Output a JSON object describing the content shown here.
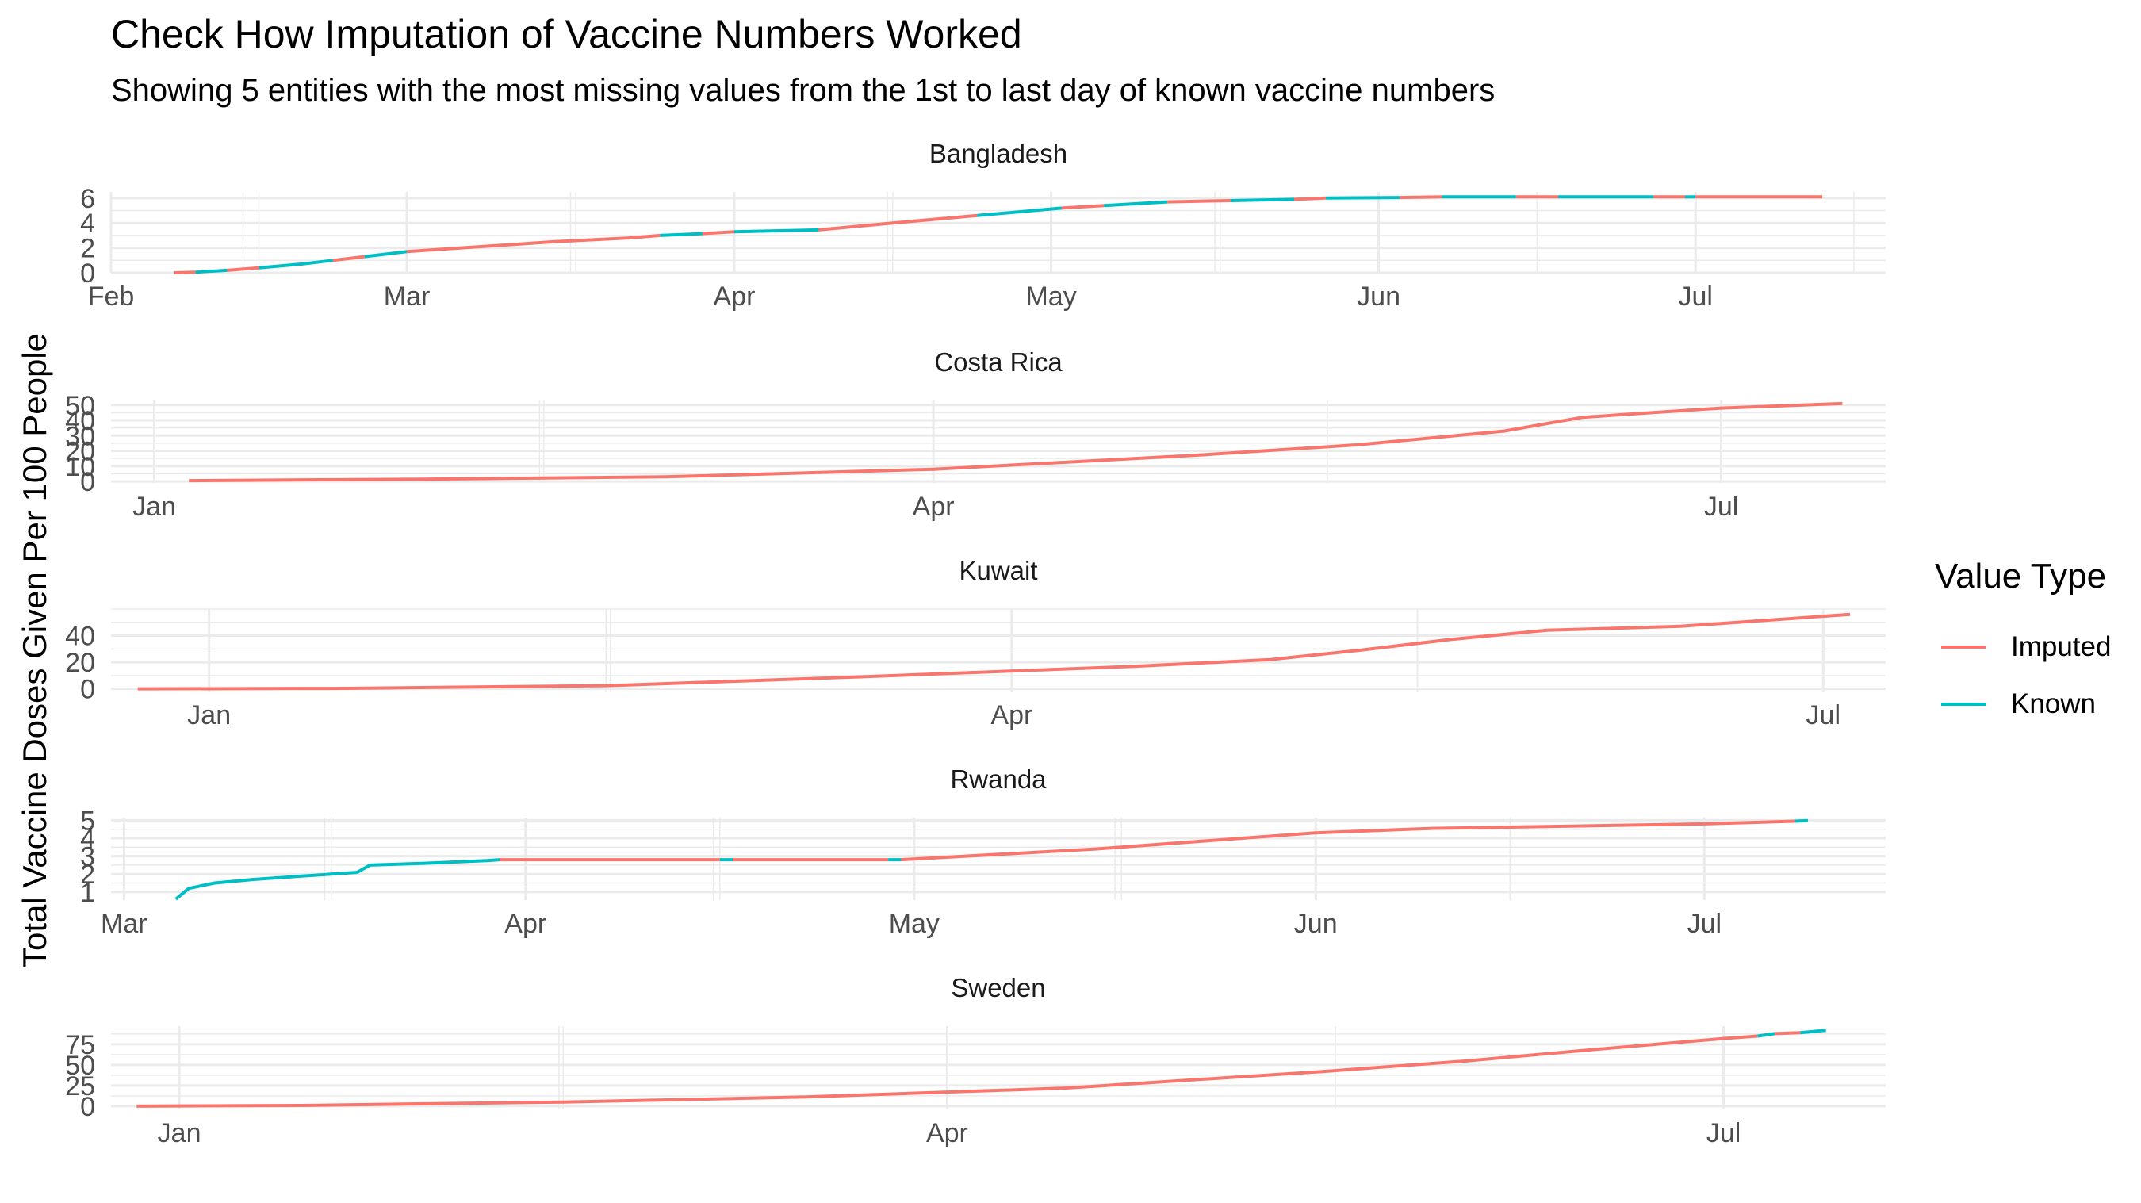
{
  "title": "Check How Imputation of Vaccine Numbers Worked",
  "subtitle": "Showing 5 entities with the most missing values from the 1st to last day of known vaccine numbers",
  "ylabel": "Total Vaccine Doses Given Per 100 People",
  "legend": {
    "title": "Value Type",
    "items": [
      {
        "label": "Imputed",
        "color": "#F8766D"
      },
      {
        "label": "Known",
        "color": "#00BFC4"
      }
    ]
  },
  "chart_data": [
    {
      "type": "line",
      "title": "Bangladesh",
      "x_type": "date",
      "xlim": [
        "2021-02-01",
        "2021-07-19"
      ],
      "ylim": [
        0,
        6.5
      ],
      "x_ticks": [
        {
          "date": "2021-02-01",
          "label": "Feb"
        },
        {
          "date": "2021-03-01",
          "label": "Mar"
        },
        {
          "date": "2021-04-01",
          "label": "Apr"
        },
        {
          "date": "2021-05-01",
          "label": "May"
        },
        {
          "date": "2021-06-01",
          "label": "Jun"
        },
        {
          "date": "2021-07-01",
          "label": "Jul"
        }
      ],
      "y_ticks": [
        0,
        2,
        4,
        6
      ],
      "segments": [
        {
          "type": "Imputed",
          "points": [
            [
              "2021-02-07",
              0
            ],
            [
              "2021-02-09",
              0.05
            ]
          ]
        },
        {
          "type": "Known",
          "points": [
            [
              "2021-02-09",
              0.05
            ],
            [
              "2021-02-12",
              0.2
            ]
          ]
        },
        {
          "type": "Imputed",
          "points": [
            [
              "2021-02-12",
              0.2
            ],
            [
              "2021-02-15",
              0.4
            ]
          ]
        },
        {
          "type": "Known",
          "points": [
            [
              "2021-02-15",
              0.4
            ],
            [
              "2021-02-19",
              0.7
            ],
            [
              "2021-02-22",
              1.0
            ]
          ]
        },
        {
          "type": "Imputed",
          "points": [
            [
              "2021-02-22",
              1.0
            ],
            [
              "2021-02-25",
              1.3
            ]
          ]
        },
        {
          "type": "Known",
          "points": [
            [
              "2021-02-25",
              1.3
            ],
            [
              "2021-03-01",
              1.7
            ]
          ]
        },
        {
          "type": "Imputed",
          "points": [
            [
              "2021-03-01",
              1.7
            ],
            [
              "2021-03-08",
              2.1
            ],
            [
              "2021-03-15",
              2.5
            ],
            [
              "2021-03-22",
              2.8
            ],
            [
              "2021-03-25",
              3.0
            ]
          ]
        },
        {
          "type": "Known",
          "points": [
            [
              "2021-03-25",
              3.0
            ],
            [
              "2021-03-29",
              3.15
            ]
          ]
        },
        {
          "type": "Imputed",
          "points": [
            [
              "2021-03-29",
              3.15
            ],
            [
              "2021-04-01",
              3.3
            ]
          ]
        },
        {
          "type": "Known",
          "points": [
            [
              "2021-04-01",
              3.3
            ],
            [
              "2021-04-09",
              3.45
            ]
          ]
        },
        {
          "type": "Imputed",
          "points": [
            [
              "2021-04-09",
              3.45
            ],
            [
              "2021-04-16",
              4.0
            ],
            [
              "2021-04-24",
              4.6
            ]
          ]
        },
        {
          "type": "Known",
          "points": [
            [
              "2021-04-24",
              4.6
            ],
            [
              "2021-05-02",
              5.2
            ]
          ]
        },
        {
          "type": "Imputed",
          "points": [
            [
              "2021-05-02",
              5.2
            ],
            [
              "2021-05-06",
              5.4
            ]
          ]
        },
        {
          "type": "Known",
          "points": [
            [
              "2021-05-06",
              5.4
            ],
            [
              "2021-05-12",
              5.7
            ]
          ]
        },
        {
          "type": "Imputed",
          "points": [
            [
              "2021-05-12",
              5.7
            ],
            [
              "2021-05-18",
              5.8
            ]
          ]
        },
        {
          "type": "Known",
          "points": [
            [
              "2021-05-18",
              5.8
            ],
            [
              "2021-05-24",
              5.9
            ]
          ]
        },
        {
          "type": "Imputed",
          "points": [
            [
              "2021-05-24",
              5.9
            ],
            [
              "2021-05-27",
              6.0
            ]
          ]
        },
        {
          "type": "Known",
          "points": [
            [
              "2021-05-27",
              6.0
            ],
            [
              "2021-06-03",
              6.05
            ]
          ]
        },
        {
          "type": "Imputed",
          "points": [
            [
              "2021-06-03",
              6.05
            ],
            [
              "2021-06-07",
              6.1
            ]
          ]
        },
        {
          "type": "Known",
          "points": [
            [
              "2021-06-07",
              6.1
            ],
            [
              "2021-06-14",
              6.1
            ]
          ]
        },
        {
          "type": "Imputed",
          "points": [
            [
              "2021-06-14",
              6.1
            ],
            [
              "2021-06-18",
              6.1
            ]
          ]
        },
        {
          "type": "Known",
          "points": [
            [
              "2021-06-18",
              6.1
            ],
            [
              "2021-06-27",
              6.1
            ]
          ]
        },
        {
          "type": "Imputed",
          "points": [
            [
              "2021-06-27",
              6.1
            ],
            [
              "2021-06-30",
              6.1
            ]
          ]
        },
        {
          "type": "Known",
          "points": [
            [
              "2021-06-30",
              6.1
            ],
            [
              "2021-07-01",
              6.1
            ]
          ]
        },
        {
          "type": "Imputed",
          "points": [
            [
              "2021-07-01",
              6.1
            ],
            [
              "2021-07-13",
              6.1
            ]
          ]
        }
      ]
    },
    {
      "type": "line",
      "title": "Costa Rica",
      "x_type": "date",
      "xlim": [
        "2020-12-27",
        "2021-07-20"
      ],
      "ylim": [
        -1,
        53
      ],
      "x_ticks": [
        {
          "date": "2021-01-01",
          "label": "Jan"
        },
        {
          "date": "2021-04-01",
          "label": "Apr"
        },
        {
          "date": "2021-07-01",
          "label": "Jul"
        }
      ],
      "y_ticks": [
        0,
        10,
        20,
        30,
        40,
        50
      ],
      "segments": [
        {
          "type": "Imputed",
          "points": [
            [
              "2021-01-05",
              0.5
            ],
            [
              "2021-02-01",
              1.5
            ],
            [
              "2021-03-01",
              3.0
            ],
            [
              "2021-04-01",
              8.0
            ],
            [
              "2021-05-01",
              17.0
            ],
            [
              "2021-05-20",
              24.0
            ],
            [
              "2021-06-06",
              33.0
            ],
            [
              "2021-06-15",
              42.0
            ],
            [
              "2021-07-01",
              48.0
            ],
            [
              "2021-07-15",
              51.0
            ]
          ]
        }
      ]
    },
    {
      "type": "line",
      "title": "Kuwait",
      "x_type": "date",
      "xlim": [
        "2020-12-21",
        "2021-07-08"
      ],
      "ylim": [
        -2,
        60
      ],
      "x_ticks": [
        {
          "date": "2021-01-01",
          "label": "Jan"
        },
        {
          "date": "2021-04-01",
          "label": "Apr"
        },
        {
          "date": "2021-07-01",
          "label": "Jul"
        }
      ],
      "y_ticks": [
        0,
        20,
        40
      ],
      "segments": [
        {
          "type": "Imputed",
          "points": [
            [
              "2020-12-24",
              0
            ],
            [
              "2021-01-15",
              0.3
            ],
            [
              "2021-02-15",
              2.5
            ],
            [
              "2021-03-15",
              9.0
            ],
            [
              "2021-04-15",
              17.0
            ],
            [
              "2021-04-30",
              22.0
            ],
            [
              "2021-05-10",
              29.0
            ],
            [
              "2021-05-20",
              37.0
            ],
            [
              "2021-05-31",
              44.0
            ],
            [
              "2021-06-15",
              47.0
            ],
            [
              "2021-07-04",
              56.0
            ]
          ]
        }
      ]
    },
    {
      "type": "line",
      "title": "Rwanda",
      "x_type": "date",
      "xlim": [
        "2021-02-28",
        "2021-07-15"
      ],
      "ylim": [
        0.55,
        5.15
      ],
      "x_ticks": [
        {
          "date": "2021-03-01",
          "label": "Mar"
        },
        {
          "date": "2021-04-01",
          "label": "Apr"
        },
        {
          "date": "2021-05-01",
          "label": "May"
        },
        {
          "date": "2021-06-01",
          "label": "Jun"
        },
        {
          "date": "2021-07-01",
          "label": "Jul"
        }
      ],
      "y_ticks": [
        1,
        2,
        3,
        4,
        5
      ],
      "segments": [
        {
          "type": "Known",
          "points": [
            [
              "2021-03-05",
              0.6
            ],
            [
              "2021-03-06",
              1.2
            ],
            [
              "2021-03-08",
              1.5
            ],
            [
              "2021-03-11",
              1.7
            ],
            [
              "2021-03-14",
              1.85
            ],
            [
              "2021-03-17",
              2.0
            ],
            [
              "2021-03-19",
              2.1
            ],
            [
              "2021-03-20",
              2.5
            ],
            [
              "2021-03-24",
              2.6
            ],
            [
              "2021-03-29",
              2.75
            ],
            [
              "2021-03-30",
              2.8
            ]
          ]
        },
        {
          "type": "Imputed",
          "points": [
            [
              "2021-03-30",
              2.8
            ],
            [
              "2021-04-16",
              2.8
            ]
          ]
        },
        {
          "type": "Known",
          "points": [
            [
              "2021-04-16",
              2.8
            ],
            [
              "2021-04-17",
              2.8
            ]
          ]
        },
        {
          "type": "Imputed",
          "points": [
            [
              "2021-04-17",
              2.8
            ],
            [
              "2021-04-29",
              2.8
            ]
          ]
        },
        {
          "type": "Known",
          "points": [
            [
              "2021-04-29",
              2.8
            ],
            [
              "2021-04-30",
              2.8
            ]
          ]
        },
        {
          "type": "Imputed",
          "points": [
            [
              "2021-04-30",
              2.8
            ],
            [
              "2021-05-15",
              3.4
            ],
            [
              "2021-06-01",
              4.3
            ],
            [
              "2021-06-10",
              4.55
            ],
            [
              "2021-07-01",
              4.8
            ],
            [
              "2021-07-08",
              4.95
            ]
          ]
        },
        {
          "type": "Known",
          "points": [
            [
              "2021-07-08",
              4.95
            ],
            [
              "2021-07-09",
              4.98
            ]
          ]
        }
      ]
    },
    {
      "type": "line",
      "title": "Sweden",
      "x_type": "date",
      "xlim": [
        "2020-12-24",
        "2021-07-20"
      ],
      "ylim": [
        -3,
        97
      ],
      "x_ticks": [
        {
          "date": "2021-01-01",
          "label": "Jan"
        },
        {
          "date": "2021-04-01",
          "label": "Apr"
        },
        {
          "date": "2021-07-01",
          "label": "Jul"
        }
      ],
      "y_ticks": [
        0,
        25,
        50,
        75
      ],
      "segments": [
        {
          "type": "Imputed",
          "points": [
            [
              "2020-12-27",
              0
            ],
            [
              "2021-01-15",
              0.8
            ],
            [
              "2021-02-15",
              5.0
            ],
            [
              "2021-03-15",
              11.0
            ],
            [
              "2021-04-15",
              22.0
            ],
            [
              "2021-05-15",
              42.0
            ],
            [
              "2021-06-01",
              55.0
            ],
            [
              "2021-06-15",
              68.0
            ],
            [
              "2021-07-01",
              82.0
            ],
            [
              "2021-07-05",
              85.0
            ]
          ]
        },
        {
          "type": "Known",
          "points": [
            [
              "2021-07-05",
              85.0
            ],
            [
              "2021-07-07",
              88.0
            ]
          ]
        },
        {
          "type": "Imputed",
          "points": [
            [
              "2021-07-07",
              88.0
            ],
            [
              "2021-07-10",
              89.0
            ]
          ]
        },
        {
          "type": "Known",
          "points": [
            [
              "2021-07-10",
              89.0
            ],
            [
              "2021-07-13",
              92.0
            ]
          ]
        }
      ]
    }
  ]
}
